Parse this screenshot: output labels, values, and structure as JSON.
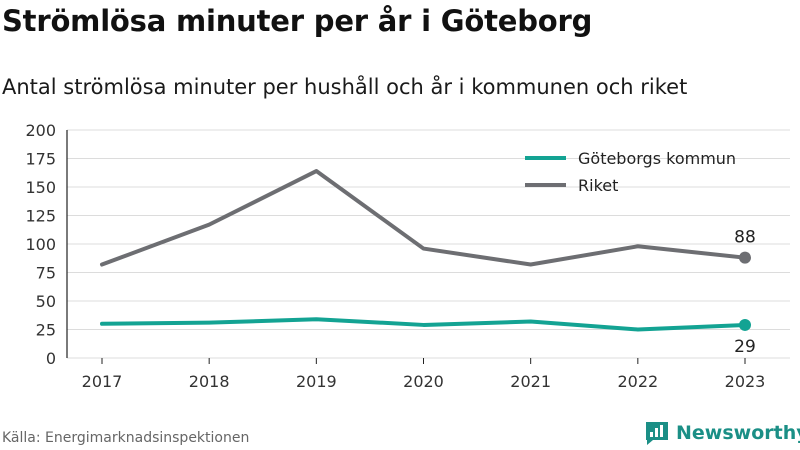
{
  "header": {
    "title": "Strömlösa minuter per år i Göteborg",
    "subtitle": "Antal strömlösa minuter per hushåll och år i kommunen och riket"
  },
  "footer": {
    "source": "Källa: Energimarknadsinspektionen",
    "brand": "Newsworthy"
  },
  "colors": {
    "goteborg": "#13a393",
    "riket": "#6d6e72",
    "grid": "#dcdcdc",
    "brand": "#1b8f86"
  },
  "chart_data": {
    "type": "line",
    "x": [
      "2017",
      "2018",
      "2019",
      "2020",
      "2021",
      "2022",
      "2023"
    ],
    "yticks": [
      0,
      25,
      50,
      75,
      100,
      125,
      150,
      175,
      200
    ],
    "ylim": [
      0,
      200
    ],
    "grid": true,
    "legend_position": "top-right",
    "series": [
      {
        "name": "Göteborgs kommun",
        "color": "#13a393",
        "values": [
          30,
          31,
          34,
          29,
          32,
          25,
          29
        ],
        "end_label": "29"
      },
      {
        "name": "Riket",
        "color": "#6d6e72",
        "values": [
          82,
          117,
          164,
          96,
          82,
          98,
          88
        ],
        "end_label": "88"
      }
    ]
  }
}
